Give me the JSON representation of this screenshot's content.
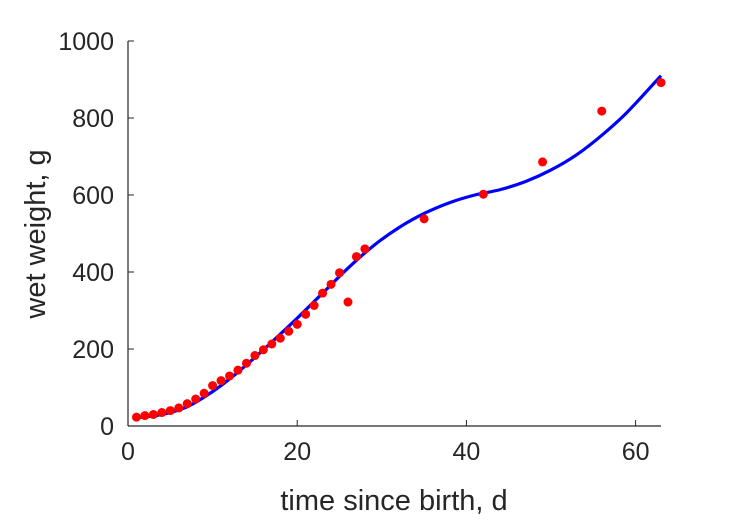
{
  "chart_data": {
    "type": "scatter",
    "xlabel": "time since birth, d",
    "ylabel": "wet weight, g",
    "xlim": [
      0,
      63
    ],
    "ylim": [
      0,
      1000
    ],
    "x_ticks": [
      0,
      20,
      40,
      60
    ],
    "y_ticks": [
      0,
      200,
      400,
      600,
      800,
      1000
    ],
    "grid": false,
    "box": "left-bottom",
    "series": [
      {
        "kind": "points",
        "color": "#ff0000",
        "x": [
          1,
          2,
          3,
          4,
          5,
          6,
          7,
          8,
          9,
          10,
          11,
          12,
          13,
          14,
          15,
          16,
          17,
          18,
          19,
          20,
          21,
          22,
          23,
          24,
          25,
          26,
          27,
          28,
          35,
          42,
          49,
          56,
          63
        ],
        "y": [
          23,
          27,
          30,
          35,
          40,
          47,
          58,
          70,
          85,
          105,
          118,
          130,
          145,
          163,
          183,
          198,
          213,
          228,
          246,
          264,
          290,
          313,
          345,
          368,
          398,
          322,
          440,
          460,
          538,
          602,
          686,
          818,
          892
        ]
      },
      {
        "kind": "line",
        "color": "#0000ff",
        "x": [
          1,
          3,
          5,
          7,
          9,
          11,
          13,
          15,
          17,
          20,
          23,
          26,
          29,
          32,
          35,
          38,
          41,
          44,
          47,
          50,
          53,
          56,
          59,
          63
        ],
        "y": [
          22,
          26,
          35,
          50,
          75,
          105,
          140,
          178,
          218,
          280,
          345,
          410,
          468,
          515,
          552,
          580,
          600,
          614,
          635,
          665,
          704,
          755,
          815,
          910
        ]
      }
    ]
  }
}
